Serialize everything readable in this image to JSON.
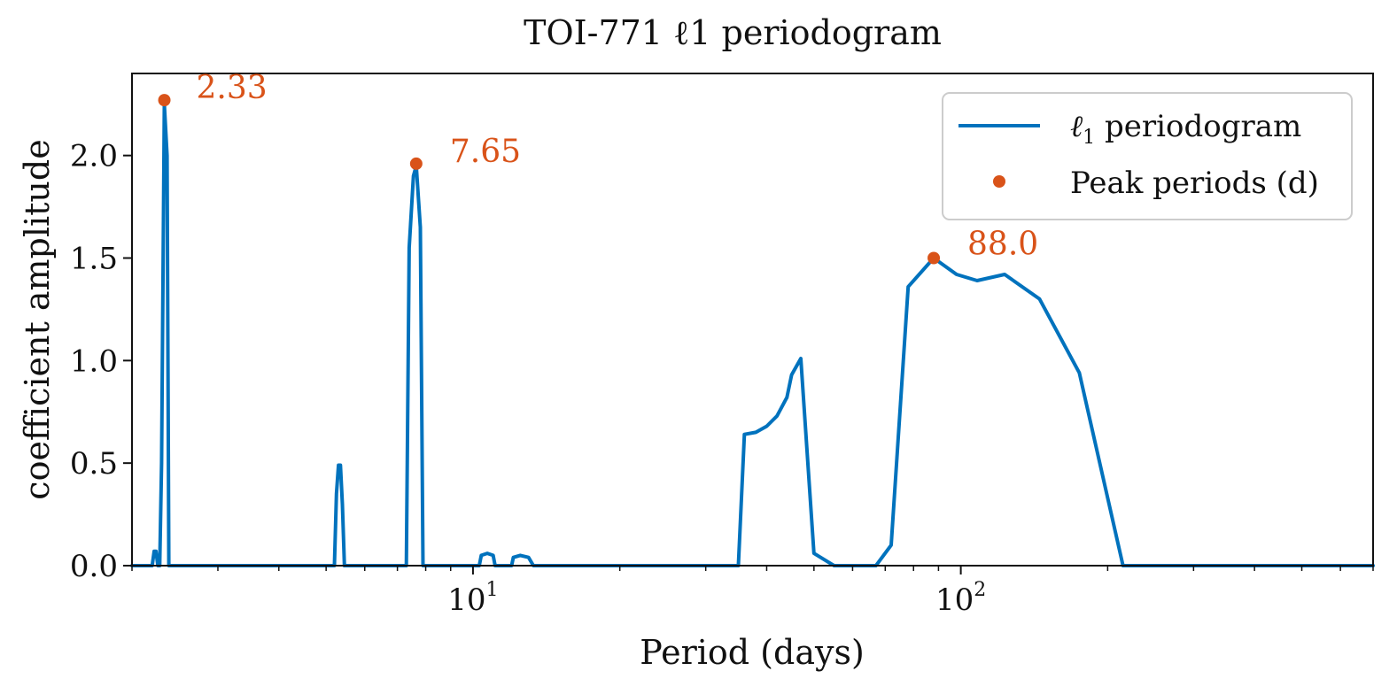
{
  "chart_data": {
    "type": "line",
    "title": "TOI-771 ℓ1 periodogram",
    "xlabel": "Period (days)",
    "ylabel": "coefficient amplitude",
    "xscale": "log",
    "xlim": [
      2.0,
      700.0
    ],
    "ylim": [
      0.0,
      2.4
    ],
    "xticks": [
      {
        "value": 10,
        "base": "10",
        "exp": "1"
      },
      {
        "value": 100,
        "base": "10",
        "exp": "2"
      }
    ],
    "yticks": [
      {
        "value": 0.0,
        "label": "0.0"
      },
      {
        "value": 0.5,
        "label": "0.5"
      },
      {
        "value": 1.0,
        "label": "1.0"
      },
      {
        "value": 1.5,
        "label": "1.5"
      },
      {
        "value": 2.0,
        "label": "2.0"
      }
    ],
    "series": [
      {
        "name": "ℓ1 periodogram",
        "color": "#0072bd",
        "x": [
          2.0,
          2.2,
          2.22,
          2.24,
          2.26,
          2.28,
          2.3,
          2.33,
          2.36,
          2.38,
          2.4,
          5.2,
          5.25,
          5.3,
          5.35,
          5.4,
          5.45,
          7.3,
          7.4,
          7.55,
          7.65,
          7.8,
          7.9,
          7.95,
          10.3,
          10.4,
          10.7,
          11.0,
          11.1,
          11.2,
          12.0,
          12.1,
          12.5,
          13.0,
          13.3,
          13.5,
          35.0,
          36.0,
          38.0,
          40.0,
          42.0,
          44.0,
          45.0,
          47.0,
          50.0,
          55.0,
          67.0,
          72.0,
          78.0,
          88.0,
          98.0,
          108.0,
          123.0,
          145.0,
          175.0,
          215.0,
          700.0
        ],
        "y": [
          0.0,
          0.0,
          0.07,
          0.07,
          0.0,
          0.0,
          0.5,
          2.25,
          2.0,
          0.0,
          0.0,
          0.0,
          0.35,
          0.49,
          0.49,
          0.3,
          0.0,
          0.0,
          1.55,
          1.9,
          1.95,
          1.65,
          0.0,
          0.0,
          0.0,
          0.05,
          0.06,
          0.05,
          0.0,
          0.0,
          0.0,
          0.04,
          0.05,
          0.04,
          0.0,
          0.0,
          0.0,
          0.64,
          0.65,
          0.68,
          0.73,
          0.82,
          0.93,
          1.01,
          0.06,
          0.0,
          0.0,
          0.1,
          1.36,
          1.5,
          1.42,
          1.39,
          1.42,
          1.3,
          0.94,
          0.0,
          0.0
        ]
      }
    ],
    "peaks": {
      "name": "Peak periods (d)",
      "color": "#d95319",
      "points": [
        {
          "x": 2.33,
          "y": 2.27,
          "label": "2.33"
        },
        {
          "x": 7.65,
          "y": 1.96,
          "label": "7.65"
        },
        {
          "x": 88.0,
          "y": 1.5,
          "label": "88.0"
        }
      ]
    },
    "legend": {
      "position": "upper-right",
      "entries": [
        {
          "marker": "line",
          "label_main": "ℓ",
          "label_sub": "1",
          "label_rest": " periodogram"
        },
        {
          "marker": "dot",
          "label_main": "Peak periods (d)"
        }
      ]
    }
  }
}
